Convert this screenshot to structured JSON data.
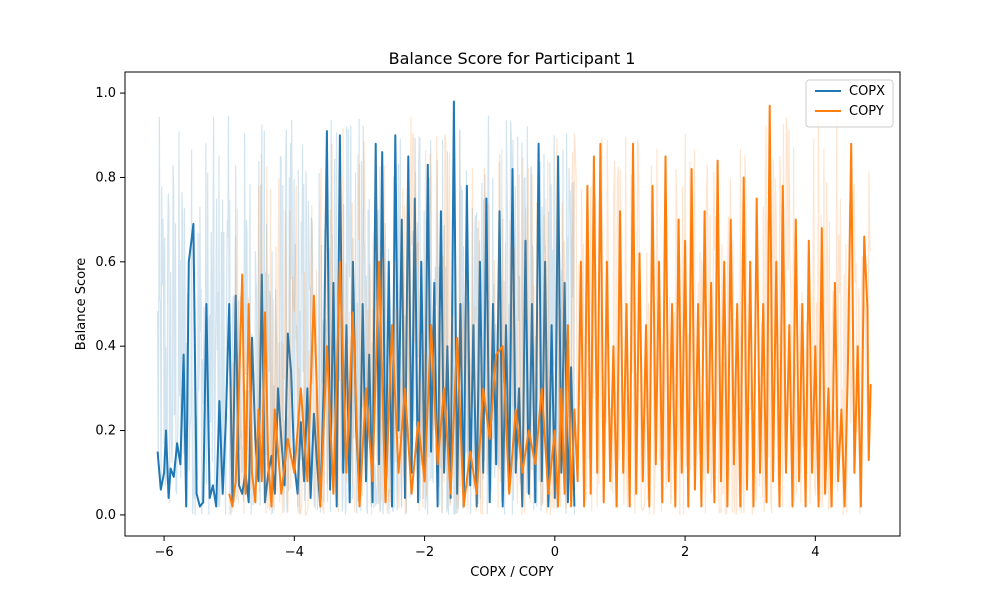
{
  "chart_data": {
    "type": "line",
    "title": "Balance Score for Participant 1",
    "xlabel": "COPX / COPY",
    "ylabel": "Balance Score",
    "xlim": [
      -6.6,
      5.3
    ],
    "ylim": [
      -0.05,
      1.05
    ],
    "x_ticks": [
      -6,
      -4,
      -2,
      0,
      2,
      4
    ],
    "x_tick_labels": [
      "−6",
      "−4",
      "−2",
      "0",
      "2",
      "4"
    ],
    "y_ticks": [
      0.0,
      0.2,
      0.4,
      0.6,
      0.8,
      1.0
    ],
    "y_tick_labels": [
      "0.0",
      "0.2",
      "0.4",
      "0.6",
      "0.8",
      "1.0"
    ],
    "grid": false,
    "legend_position": "top-right",
    "series": [
      {
        "name": "COPX",
        "color": "#1f77b4",
        "x_range": [
          -6.1,
          0.3
        ],
        "points": [
          [
            -6.1,
            0.15
          ],
          [
            -6.05,
            0.06
          ],
          [
            -6.0,
            0.1
          ],
          [
            -5.97,
            0.2
          ],
          [
            -5.93,
            0.04
          ],
          [
            -5.9,
            0.11
          ],
          [
            -5.85,
            0.09
          ],
          [
            -5.8,
            0.17
          ],
          [
            -5.75,
            0.12
          ],
          [
            -5.7,
            0.38
          ],
          [
            -5.66,
            0.02
          ],
          [
            -5.62,
            0.6
          ],
          [
            -5.58,
            0.65
          ],
          [
            -5.55,
            0.69
          ],
          [
            -5.5,
            0.05
          ],
          [
            -5.45,
            0.02
          ],
          [
            -5.4,
            0.03
          ],
          [
            -5.35,
            0.5
          ],
          [
            -5.3,
            0.04
          ],
          [
            -5.25,
            0.07
          ],
          [
            -5.2,
            0.02
          ],
          [
            -5.15,
            0.27
          ],
          [
            -5.1,
            0.05
          ],
          [
            -5.05,
            0.23
          ],
          [
            -5.0,
            0.5
          ],
          [
            -4.95,
            0.03
          ],
          [
            -4.9,
            0.52
          ],
          [
            -4.85,
            0.07
          ],
          [
            -4.8,
            0.05
          ],
          [
            -4.75,
            0.1
          ],
          [
            -4.7,
            0.03
          ],
          [
            -4.65,
            0.42
          ],
          [
            -4.6,
            0.18
          ],
          [
            -4.55,
            0.08
          ],
          [
            -4.5,
            0.57
          ],
          [
            -4.45,
            0.03
          ],
          [
            -4.4,
            0.1
          ],
          [
            -4.35,
            0.14
          ],
          [
            -4.3,
            0.05
          ],
          [
            -4.25,
            0.3
          ],
          [
            -4.2,
            0.18
          ],
          [
            -4.15,
            0.07
          ],
          [
            -4.1,
            0.43
          ],
          [
            -4.05,
            0.34
          ],
          [
            -4.0,
            0.12
          ],
          [
            -3.95,
            0.05
          ],
          [
            -3.9,
            0.22
          ],
          [
            -3.85,
            0.08
          ],
          [
            -3.8,
            0.3
          ],
          [
            -3.75,
            0.04
          ],
          [
            -3.7,
            0.24
          ],
          [
            -3.65,
            0.12
          ],
          [
            -3.6,
            0.02
          ],
          [
            -3.55,
            0.3
          ],
          [
            -3.5,
            0.91
          ],
          [
            -3.45,
            0.06
          ],
          [
            -3.4,
            0.55
          ],
          [
            -3.35,
            0.02
          ],
          [
            -3.3,
            0.9
          ],
          [
            -3.25,
            0.1
          ],
          [
            -3.2,
            0.45
          ],
          [
            -3.15,
            0.03
          ],
          [
            -3.1,
            0.6
          ],
          [
            -3.05,
            0.2
          ],
          [
            -3.0,
            0.05
          ],
          [
            -2.95,
            0.5
          ],
          [
            -2.9,
            0.08
          ],
          [
            -2.85,
            0.38
          ],
          [
            -2.8,
            0.03
          ],
          [
            -2.75,
            0.88
          ],
          [
            -2.7,
            0.12
          ],
          [
            -2.65,
            0.86
          ],
          [
            -2.6,
            0.05
          ],
          [
            -2.55,
            0.6
          ],
          [
            -2.5,
            0.02
          ],
          [
            -2.45,
            0.9
          ],
          [
            -2.4,
            0.2
          ],
          [
            -2.35,
            0.7
          ],
          [
            -2.3,
            0.04
          ],
          [
            -2.25,
            0.85
          ],
          [
            -2.2,
            0.1
          ],
          [
            -2.15,
            0.75
          ],
          [
            -2.1,
            0.03
          ],
          [
            -2.05,
            0.6
          ],
          [
            -2.0,
            0.08
          ],
          [
            -1.95,
            0.83
          ],
          [
            -1.9,
            0.15
          ],
          [
            -1.85,
            0.55
          ],
          [
            -1.8,
            0.02
          ],
          [
            -1.75,
            0.72
          ],
          [
            -1.7,
            0.1
          ],
          [
            -1.65,
            0.4
          ],
          [
            -1.6,
            0.04
          ],
          [
            -1.55,
            0.98
          ],
          [
            -1.5,
            0.05
          ],
          [
            -1.45,
            0.5
          ],
          [
            -1.4,
            0.02
          ],
          [
            -1.35,
            0.78
          ],
          [
            -1.3,
            0.07
          ],
          [
            -1.25,
            0.45
          ],
          [
            -1.2,
            0.02
          ],
          [
            -1.15,
            0.6
          ],
          [
            -1.1,
            0.1
          ],
          [
            -1.05,
            0.75
          ],
          [
            -1.0,
            0.03
          ],
          [
            -0.95,
            0.5
          ],
          [
            -0.9,
            0.12
          ],
          [
            -0.85,
            0.72
          ],
          [
            -0.8,
            0.02
          ],
          [
            -0.75,
            0.45
          ],
          [
            -0.7,
            0.06
          ],
          [
            -0.65,
            0.82
          ],
          [
            -0.6,
            0.1
          ],
          [
            -0.55,
            0.3
          ],
          [
            -0.5,
            0.02
          ],
          [
            -0.45,
            0.65
          ],
          [
            -0.4,
            0.05
          ],
          [
            -0.35,
            0.5
          ],
          [
            -0.3,
            0.03
          ],
          [
            -0.25,
            0.88
          ],
          [
            -0.2,
            0.08
          ],
          [
            -0.15,
            0.6
          ],
          [
            -0.1,
            0.02
          ],
          [
            -0.05,
            0.45
          ],
          [
            0.0,
            0.04
          ],
          [
            0.05,
            0.85
          ],
          [
            0.1,
            0.1
          ],
          [
            0.15,
            0.55
          ],
          [
            0.2,
            0.03
          ],
          [
            0.25,
            0.35
          ],
          [
            0.3,
            0.02
          ]
        ]
      },
      {
        "name": "COPY",
        "color": "#ff7f0e",
        "x_range": [
          -5.0,
          4.85
        ],
        "points": [
          [
            -5.0,
            0.05
          ],
          [
            -4.95,
            0.02
          ],
          [
            -4.9,
            0.08
          ],
          [
            -4.85,
            0.3
          ],
          [
            -4.8,
            0.57
          ],
          [
            -4.75,
            0.05
          ],
          [
            -4.7,
            0.5
          ],
          [
            -4.65,
            0.1
          ],
          [
            -4.6,
            0.03
          ],
          [
            -4.55,
            0.25
          ],
          [
            -4.5,
            0.08
          ],
          [
            -4.45,
            0.48
          ],
          [
            -4.4,
            0.12
          ],
          [
            -4.35,
            0.02
          ],
          [
            -4.3,
            0.25
          ],
          [
            -4.2,
            0.05
          ],
          [
            -4.1,
            0.18
          ],
          [
            -4.0,
            0.1
          ],
          [
            -3.9,
            0.3
          ],
          [
            -3.8,
            0.08
          ],
          [
            -3.7,
            0.52
          ],
          [
            -3.6,
            0.02
          ],
          [
            -3.5,
            0.4
          ],
          [
            -3.4,
            0.05
          ],
          [
            -3.3,
            0.6
          ],
          [
            -3.2,
            0.1
          ],
          [
            -3.1,
            0.48
          ],
          [
            -3.0,
            0.02
          ],
          [
            -2.9,
            0.3
          ],
          [
            -2.8,
            0.08
          ],
          [
            -2.7,
            0.6
          ],
          [
            -2.6,
            0.03
          ],
          [
            -2.5,
            0.45
          ],
          [
            -2.4,
            0.1
          ],
          [
            -2.3,
            0.3
          ],
          [
            -2.2,
            0.05
          ],
          [
            -2.1,
            0.22
          ],
          [
            -2.0,
            0.08
          ],
          [
            -1.9,
            0.45
          ],
          [
            -1.8,
            0.12
          ],
          [
            -1.7,
            0.3
          ],
          [
            -1.6,
            0.05
          ],
          [
            -1.5,
            0.42
          ],
          [
            -1.4,
            0.02
          ],
          [
            -1.3,
            0.15
          ],
          [
            -1.2,
            0.05
          ],
          [
            -1.1,
            0.3
          ],
          [
            -1.0,
            0.18
          ],
          [
            -0.9,
            0.38
          ],
          [
            -0.8,
            0.4
          ],
          [
            -0.7,
            0.05
          ],
          [
            -0.6,
            0.25
          ],
          [
            -0.5,
            0.1
          ],
          [
            -0.4,
            0.2
          ],
          [
            -0.3,
            0.12
          ],
          [
            -0.2,
            0.3
          ],
          [
            -0.1,
            0.05
          ],
          [
            0.0,
            0.2
          ],
          [
            0.05,
            0.02
          ],
          [
            0.1,
            0.3
          ],
          [
            0.15,
            0.05
          ],
          [
            0.2,
            0.45
          ],
          [
            0.25,
            0.02
          ],
          [
            0.3,
            0.25
          ],
          [
            0.35,
            0.08
          ],
          [
            0.4,
            0.6
          ],
          [
            0.45,
            0.02
          ],
          [
            0.5,
            0.78
          ],
          [
            0.55,
            0.05
          ],
          [
            0.6,
            0.85
          ],
          [
            0.65,
            0.1
          ],
          [
            0.7,
            0.88
          ],
          [
            0.75,
            0.03
          ],
          [
            0.8,
            0.6
          ],
          [
            0.85,
            0.08
          ],
          [
            0.9,
            0.4
          ],
          [
            0.95,
            0.02
          ],
          [
            1.0,
            0.72
          ],
          [
            1.05,
            0.1
          ],
          [
            1.1,
            0.5
          ],
          [
            1.15,
            0.02
          ],
          [
            1.2,
            0.88
          ],
          [
            1.25,
            0.05
          ],
          [
            1.3,
            0.62
          ],
          [
            1.35,
            0.08
          ],
          [
            1.4,
            0.45
          ],
          [
            1.45,
            0.02
          ],
          [
            1.5,
            0.78
          ],
          [
            1.55,
            0.12
          ],
          [
            1.6,
            0.6
          ],
          [
            1.65,
            0.03
          ],
          [
            1.7,
            0.85
          ],
          [
            1.75,
            0.08
          ],
          [
            1.8,
            0.5
          ],
          [
            1.85,
            0.02
          ],
          [
            1.9,
            0.7
          ],
          [
            1.95,
            0.1
          ],
          [
            2.0,
            0.65
          ],
          [
            2.05,
            0.02
          ],
          [
            2.1,
            0.82
          ],
          [
            2.15,
            0.06
          ],
          [
            2.2,
            0.5
          ],
          [
            2.25,
            0.02
          ],
          [
            2.3,
            0.72
          ],
          [
            2.35,
            0.1
          ],
          [
            2.4,
            0.55
          ],
          [
            2.45,
            0.03
          ],
          [
            2.5,
            0.84
          ],
          [
            2.55,
            0.08
          ],
          [
            2.6,
            0.6
          ],
          [
            2.65,
            0.02
          ],
          [
            2.7,
            0.7
          ],
          [
            2.75,
            0.12
          ],
          [
            2.8,
            0.5
          ],
          [
            2.85,
            0.02
          ],
          [
            2.9,
            0.8
          ],
          [
            2.95,
            0.06
          ],
          [
            3.0,
            0.6
          ],
          [
            3.05,
            0.02
          ],
          [
            3.1,
            0.75
          ],
          [
            3.15,
            0.1
          ],
          [
            3.2,
            0.5
          ],
          [
            3.25,
            0.03
          ],
          [
            3.3,
            0.97
          ],
          [
            3.35,
            0.08
          ],
          [
            3.4,
            0.6
          ],
          [
            3.45,
            0.02
          ],
          [
            3.5,
            0.78
          ],
          [
            3.55,
            0.1
          ],
          [
            3.6,
            0.45
          ],
          [
            3.65,
            0.02
          ],
          [
            3.7,
            0.7
          ],
          [
            3.75,
            0.08
          ],
          [
            3.8,
            0.5
          ],
          [
            3.85,
            0.02
          ],
          [
            3.9,
            0.65
          ],
          [
            3.95,
            0.1
          ],
          [
            4.0,
            0.4
          ],
          [
            4.05,
            0.02
          ],
          [
            4.1,
            0.68
          ],
          [
            4.15,
            0.05
          ],
          [
            4.2,
            0.3
          ],
          [
            4.25,
            0.02
          ],
          [
            4.3,
            0.55
          ],
          [
            4.35,
            0.08
          ],
          [
            4.4,
            0.25
          ],
          [
            4.45,
            0.02
          ],
          [
            4.5,
            0.35
          ],
          [
            4.55,
            0.88
          ],
          [
            4.6,
            0.1
          ],
          [
            4.65,
            0.4
          ],
          [
            4.7,
            0.02
          ],
          [
            4.75,
            0.66
          ],
          [
            4.8,
            0.49
          ],
          [
            4.82,
            0.13
          ],
          [
            4.85,
            0.31
          ]
        ]
      }
    ]
  }
}
